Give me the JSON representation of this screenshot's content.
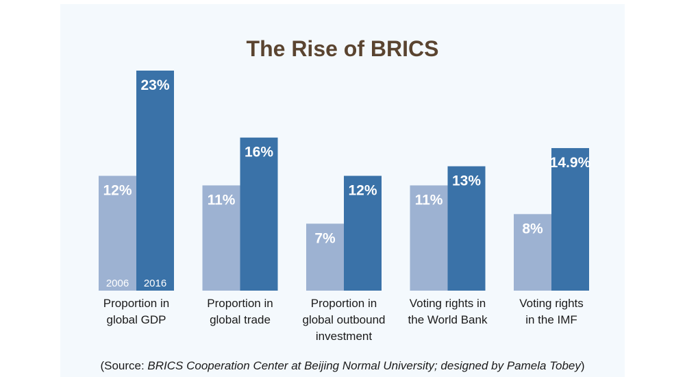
{
  "chart_data": {
    "type": "bar",
    "title": "The Rise of BRICS",
    "categories": [
      [
        "Proportion in",
        "global GDP"
      ],
      [
        "Proportion in",
        "global trade"
      ],
      [
        "Proportion in",
        "global outbound",
        "investment"
      ],
      [
        "Voting rights in",
        "the World Bank"
      ],
      [
        "Voting rights",
        "in the IMF"
      ]
    ],
    "series": [
      {
        "name": "2006",
        "values": [
          12,
          11,
          7,
          11,
          8
        ],
        "labels": [
          "12%",
          "11%",
          "7%",
          "11%",
          "8%"
        ],
        "color": "#9db2d2"
      },
      {
        "name": "2016",
        "values": [
          23,
          16,
          12,
          13,
          14.9
        ],
        "labels": [
          "23%",
          "16%",
          "12%",
          "13%",
          "14.9%"
        ],
        "color": "#3a72a8"
      }
    ],
    "ylim": [
      0,
      23
    ],
    "grid": false,
    "legend": "inside-first-bars",
    "colors": {
      "title": "#5a4430",
      "label_outside": "#1f5d8c"
    }
  },
  "source": {
    "open": "(Source: ",
    "italic": "BRICS Cooperation Center at Beijing Normal University; designed by Pamela Tobey",
    "close": ")"
  }
}
